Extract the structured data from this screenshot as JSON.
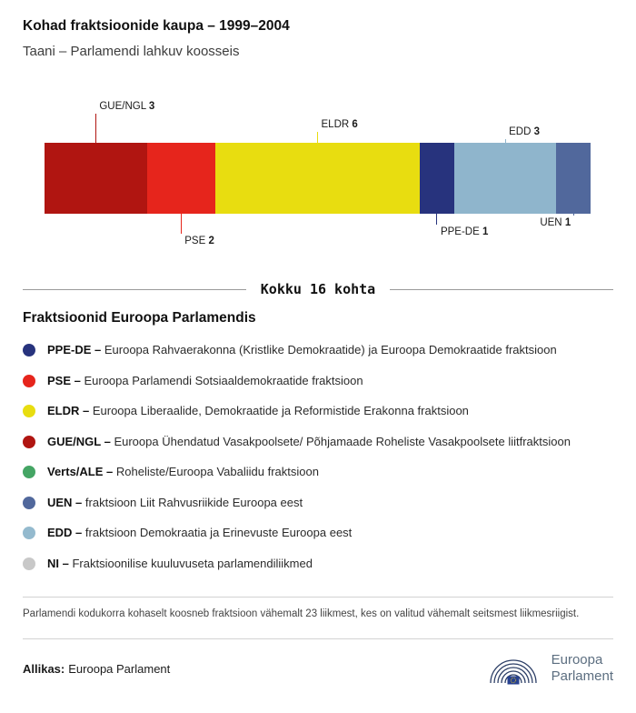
{
  "header": {
    "title": "Kohad fraktsioonide kaupa – 1999–2004",
    "subtitle": "Taani – Parlamendi lahkuv koosseis"
  },
  "chart_data": {
    "type": "bar",
    "title": "Kohad fraktsioonide kaupa – 1999–2004",
    "subtitle": "Taani – Parlamendi lahkuv koosseis",
    "total_seats": 16,
    "total_label": "Kokku 16 kohta",
    "orientation": "horizontal-stacked",
    "series": [
      {
        "name": "GUE/NGL",
        "value": 3,
        "color": "#b01511",
        "callout": {
          "side": "above",
          "line": 32,
          "align": "left"
        }
      },
      {
        "name": "PSE",
        "value": 2,
        "color": "#e6251c",
        "callout": {
          "side": "below",
          "line": 22,
          "align": "left"
        }
      },
      {
        "name": "ELDR",
        "value": 6,
        "color": "#e8dd10",
        "callout": {
          "side": "above",
          "line": 12,
          "align": "left"
        }
      },
      {
        "name": "PPE-DE",
        "value": 1,
        "color": "#27337d",
        "callout": {
          "side": "below",
          "line": 12,
          "align": "left"
        }
      },
      {
        "name": "EDD",
        "value": 3,
        "color": "#8fb5cc",
        "callout": {
          "side": "above",
          "line": 4,
          "align": "left"
        }
      },
      {
        "name": "UEN",
        "value": 1,
        "color": "#51689c",
        "callout": {
          "side": "below",
          "line": 2,
          "align": "right"
        }
      }
    ]
  },
  "legend": {
    "heading": "Fraktsioonid Euroopa Parlamendis",
    "items": [
      {
        "label": "PPE-DE –",
        "desc": "Euroopa Rahvaerakonna (Kristlike Demokraatide) ja Euroopa Demokraatide fraktsioon",
        "color": "#27337d"
      },
      {
        "label": "PSE –",
        "desc": "Euroopa Parlamendi Sotsiaaldemokraatide fraktsioon",
        "color": "#e6251c"
      },
      {
        "label": "ELDR –",
        "desc": "Euroopa Liberaalide, Demokraatide ja Reformistide Erakonna fraktsioon",
        "color": "#e8dd10"
      },
      {
        "label": "GUE/NGL –",
        "desc": "Euroopa Ühendatud Vasakpoolsete/ Põhjamaade Roheliste Vasakpoolsete liitfraktsioon",
        "color": "#b01511"
      },
      {
        "label": "Verts/ALE –",
        "desc": "Roheliste/Euroopa Vabaliidu fraktsioon",
        "color": "#44a564"
      },
      {
        "label": "UEN –",
        "desc": "fraktsioon Liit Rahvusriikide Euroopa eest",
        "color": "#51689c"
      },
      {
        "label": "EDD –",
        "desc": "fraktsioon Demokraatia ja Erinevuste Euroopa eest",
        "color": "#94bace"
      },
      {
        "label": "NI –",
        "desc": "Fraktsioonilise kuuluvuseta parlamendiliikmed",
        "color": "#c8c8c8"
      }
    ]
  },
  "footnote": "Parlamendi kodukorra kohaselt koosneb fraktsioon vähemalt 23 liikmest, kes on valitud vähemalt seitsmest liikmesriigist.",
  "source": {
    "label": "Allikas:",
    "value": "Euroopa Parlament"
  },
  "logo": {
    "line1": "Euroopa",
    "line2": "Parlament"
  }
}
